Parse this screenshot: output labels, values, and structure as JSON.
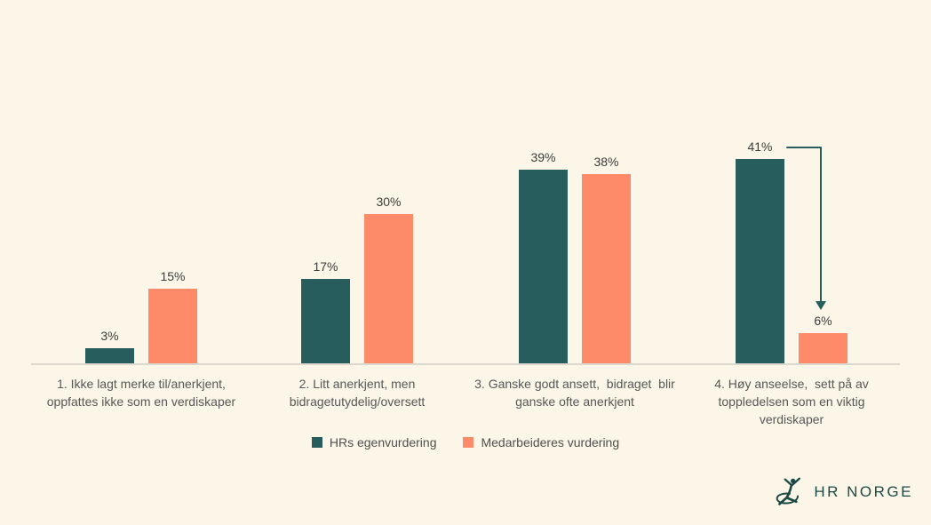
{
  "chart_data": {
    "type": "bar",
    "title": "",
    "categories": [
      "1. Ikke lagt merke til/anerkjent,\noppfattes ikke som en verdiskaper",
      "2. Litt anerkjent, men\nbidragetutydelig/oversett",
      "3. Ganske godt ansett,  bidraget  blir\nganske ofte anerkjent",
      "4. Høy anseelse,  sett på av\ntoppledelsen som en viktig\nverdiskaper"
    ],
    "series": [
      {
        "name": "HRs egenvurdering",
        "color": "#275d5d",
        "values": [
          3,
          17,
          39,
          41
        ]
      },
      {
        "name": "Medarbeideres vurdering",
        "color": "#fd8b69",
        "values": [
          15,
          30,
          38,
          6
        ]
      }
    ],
    "value_suffix": "%",
    "ylim": [
      0,
      45
    ],
    "grid": false,
    "legend_position": "bottom",
    "annotation": {
      "type": "arrow-down",
      "description": "Arrow pointing from the 41% bar (HRs egenvurdering) down to the 6% bar (Medarbeideres vurdering) in category 4",
      "color": "#275d5d"
    }
  },
  "legend": {
    "items": [
      {
        "label": "HRs egenvurdering",
        "color": "#275d5d"
      },
      {
        "label": "Medarbeideres vurdering",
        "color": "#fd8b69"
      }
    ]
  },
  "logo": {
    "text": "HR NORGE",
    "color": "#1d4945"
  },
  "colors": {
    "background": "#fbf6e7",
    "axis_line": "#dcd8cd",
    "value_label": "#3d3d3d",
    "category_label": "#575757"
  }
}
